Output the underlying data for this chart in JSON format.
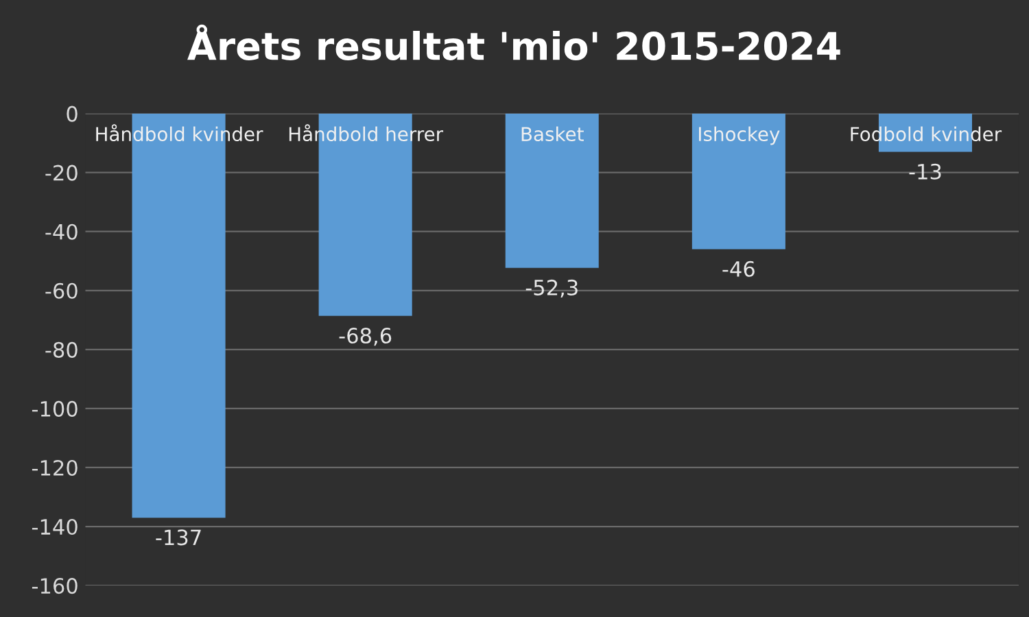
{
  "chart_data": {
    "type": "bar",
    "title": "Årets resultat 'mio' 2015-2024",
    "categories": [
      "Håndbold kvinder",
      "Håndbold herrer",
      "Basket",
      "Ishockey",
      "Fodbold kvinder"
    ],
    "values": [
      -137,
      -68.6,
      -52.3,
      -46,
      -13
    ],
    "value_labels": [
      "-137",
      "-68,6",
      "-52,3",
      "-46",
      "-13"
    ],
    "color": "#5b9bd5",
    "ylim": [
      -160,
      0
    ],
    "yticks": [
      -160,
      -140,
      -120,
      -100,
      -80,
      -60,
      -40,
      -20,
      0
    ],
    "grid": "y"
  }
}
